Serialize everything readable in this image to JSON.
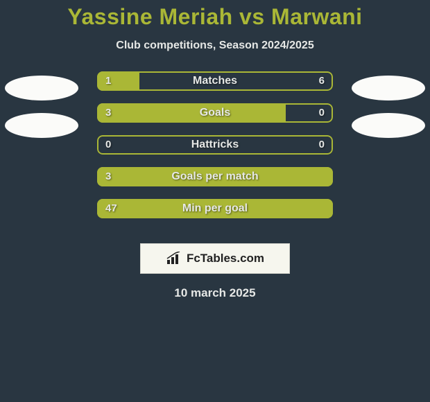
{
  "colors": {
    "background": "#293641",
    "title": "#aab736",
    "text": "#e6e8e6",
    "avatar": "#fbfbf9",
    "accent": "#aab736",
    "bar_border": "#aab736",
    "brand_bg": "#f6f6ee",
    "brand_text": "#222222"
  },
  "title": "Yassine Meriah vs Marwani",
  "title_fontsize": 32,
  "subtitle": "Club competitions, Season 2024/2025",
  "subtitle_fontsize": 16,
  "avatars": {
    "left": {
      "top_color": "#fbfbf9",
      "bottom_color": "#fbfbf9"
    },
    "right": {
      "top_color": "#fbfbf9",
      "bottom_color": "#fbfbf9"
    }
  },
  "bars": [
    {
      "label": "Matches",
      "left_value": "1",
      "right_value": "6",
      "left_pct": 18,
      "right_pct": 82,
      "left_fill": "#aab736",
      "right_fill": "transparent"
    },
    {
      "label": "Goals",
      "left_value": "3",
      "right_value": "0",
      "left_pct": 80,
      "right_pct": 20,
      "left_fill": "#aab736",
      "right_fill": "transparent"
    },
    {
      "label": "Hattricks",
      "left_value": "0",
      "right_value": "0",
      "left_pct": 0,
      "right_pct": 0,
      "left_fill": "transparent",
      "right_fill": "transparent"
    },
    {
      "label": "Goals per match",
      "left_value": "3",
      "right_value": "",
      "left_pct": 100,
      "right_pct": 0,
      "left_fill": "#aab736",
      "right_fill": "transparent"
    },
    {
      "label": "Min per goal",
      "left_value": "47",
      "right_value": "",
      "left_pct": 100,
      "right_pct": 0,
      "left_fill": "#aab736",
      "right_fill": "transparent"
    }
  ],
  "brand": {
    "text": "FcTables.com",
    "icon_name": "bars-chart-icon"
  },
  "date": "10 march 2025"
}
